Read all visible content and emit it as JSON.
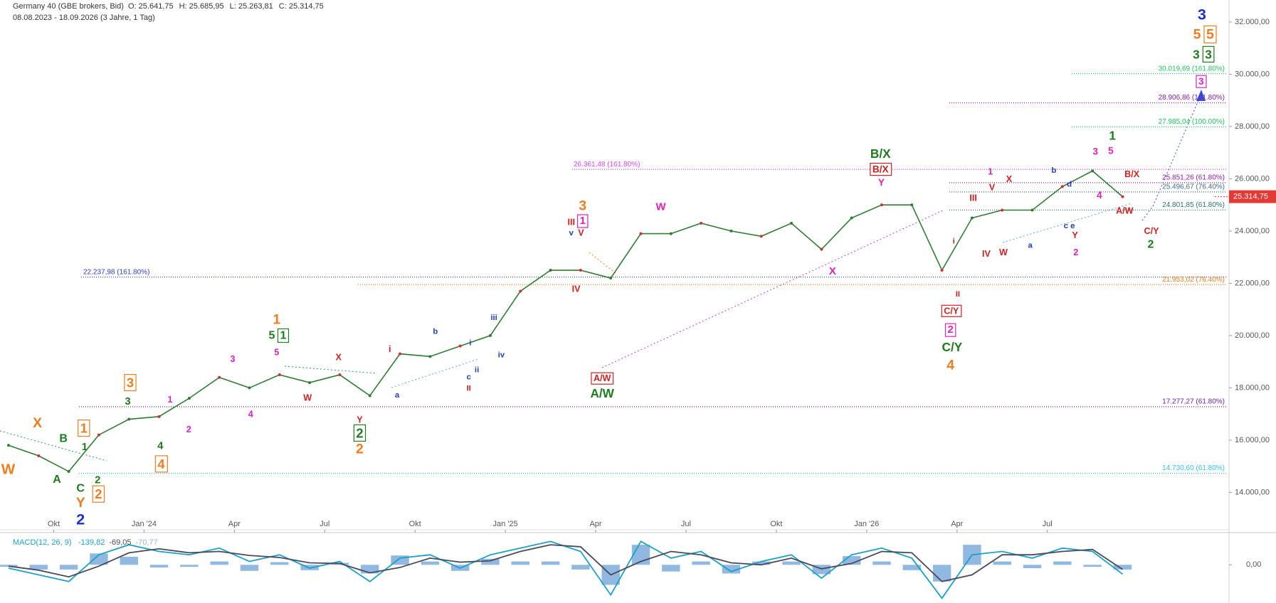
{
  "chart_data": [
    {
      "type": "line",
      "title": "Germany 40 (GBE brokers, Bid)",
      "ohlc": [
        "O: 25.641,75",
        "H: 25.685,95",
        "L: 25.263,81",
        "C: 25.314,75"
      ],
      "date_range": "08.08.2023 - 18.09.2026  (3 Jahre, 1 Tag)",
      "categories": [
        null,
        null,
        "Okt",
        null,
        null,
        "Jan '24",
        null,
        null,
        "Apr",
        null,
        null,
        "Jul",
        null,
        null,
        "Okt",
        null,
        null,
        "Jan '25",
        null,
        null,
        "Apr",
        null,
        null,
        "Jul",
        null,
        null,
        "Okt",
        null,
        null,
        "Jan '26",
        null,
        null,
        "Apr",
        null,
        null,
        "Jul",
        null,
        null
      ],
      "values": [
        15800,
        15400,
        14800,
        16200,
        16800,
        16900,
        17600,
        18400,
        18000,
        18500,
        18200,
        18500,
        17700,
        19300,
        19200,
        19600,
        20000,
        21700,
        22500,
        22500,
        22200,
        23900,
        23900,
        24300,
        24000,
        23800,
        24300,
        23300,
        24500,
        25000,
        25000,
        22500,
        24500,
        24800,
        24800,
        25700,
        26300,
        25314.75
      ],
      "color": "#2e7d32",
      "ylim": [
        12570,
        32840
      ],
      "yticks": [
        {
          "value": 14000,
          "label": "14.000,00"
        },
        {
          "value": 16000,
          "label": "16.000,00"
        },
        {
          "value": 18000,
          "label": "18.000,00"
        },
        {
          "value": 20000,
          "label": "20.000,00"
        },
        {
          "value": 22000,
          "label": "22.000,00"
        },
        {
          "value": 24000,
          "label": "24.000,00"
        },
        {
          "value": 26000,
          "label": "26.000,00"
        },
        {
          "value": 28000,
          "label": "28.000,00"
        },
        {
          "value": 30000,
          "label": "30.000,00"
        },
        {
          "value": 32000,
          "label": "32.000,00"
        }
      ],
      "last_price": {
        "value": 25314.75,
        "label": "25.314,75",
        "color": "#e53935"
      },
      "fib_levels": [
        {
          "value": 30019.69,
          "label": "30.019,69 (161.80%)",
          "color": "#22c55e"
        },
        {
          "value": 28906.86,
          "label": "28.906,86 (161.80%)",
          "color": "#8b1fa9"
        },
        {
          "value": 27985.04,
          "label": "27.985,04 (100.00%)",
          "color": "#22c55e"
        },
        {
          "value": 26361.48,
          "label": "26.361,48 (161.80%)",
          "color": "#d946ef"
        },
        {
          "value": 25851.26,
          "label": "25.851,26 (61.80%)",
          "color": "#8b1fa9"
        },
        {
          "value": 25496.67,
          "label": "25.496,67 (76.40%)",
          "color": "#3f6f7a"
        },
        {
          "value": 24801.85,
          "label": "24.801,85 (61.80%)",
          "color": "#2f6f6f"
        },
        {
          "value": 22237.98,
          "label": "22.237,98 (161.80%)",
          "color": "#2d3fbf"
        },
        {
          "value": 21953.02,
          "label": "21.953,02 (76.40%)",
          "color": "#f07d1f"
        },
        {
          "value": 17277.27,
          "label": "17.277,27 (61.80%)",
          "color": "#6b21a8"
        },
        {
          "value": 14730.6,
          "label": "14.730,60 (61.80%)",
          "color": "#38bdf8"
        }
      ],
      "annotations": [
        {
          "text": "W",
          "color": "#f07d1f"
        },
        {
          "text": "X",
          "color": "#f07d1f"
        },
        {
          "text": "Y",
          "color": "#f07d1f"
        },
        {
          "text": "2",
          "color": "#1f2fd0"
        },
        {
          "text": "A",
          "color": "#1e7b1e"
        },
        {
          "text": "B",
          "color": "#1e7b1e"
        },
        {
          "text": "C",
          "color": "#1e7b1e"
        },
        {
          "text": "1",
          "color": "#1e7b1e"
        },
        {
          "text": "2",
          "color": "#1e7b1e"
        },
        {
          "text": "1",
          "color": "#f07d1f",
          "boxed": true
        },
        {
          "text": "2",
          "color": "#f07d1f",
          "boxed": true
        },
        {
          "text": "3",
          "color": "#f07d1f",
          "boxed": true
        },
        {
          "text": "3",
          "color": "#1e7b1e"
        },
        {
          "text": "4",
          "color": "#1e7b1e"
        },
        {
          "text": "4",
          "color": "#f07d1f",
          "boxed": true
        },
        {
          "text": "1",
          "color": "#e020c0"
        },
        {
          "text": "2",
          "color": "#e020c0"
        },
        {
          "text": "3",
          "color": "#e020c0"
        },
        {
          "text": "4",
          "color": "#e020c0"
        },
        {
          "text": "1",
          "color": "#f07d1f"
        },
        {
          "text": "5",
          "color": "#1e7b1e"
        },
        {
          "text": "1",
          "color": "#1e7b1e",
          "boxed": true
        },
        {
          "text": "5",
          "color": "#e020c0"
        },
        {
          "text": "X",
          "color": "#d02020"
        },
        {
          "text": "W",
          "color": "#d02020"
        },
        {
          "text": "Y",
          "color": "#d02020"
        },
        {
          "text": "2",
          "color": "#1e7b1e",
          "boxed": true
        },
        {
          "text": "2",
          "color": "#f07d1f"
        },
        {
          "text": "i",
          "color": "#d02020"
        },
        {
          "text": "a",
          "color": "#2040c0"
        },
        {
          "text": "b",
          "color": "#2040c0"
        },
        {
          "text": "i",
          "color": "#2040c0"
        },
        {
          "text": "c",
          "color": "#2040c0"
        },
        {
          "text": "ii",
          "color": "#2040c0"
        },
        {
          "text": "II",
          "color": "#d02020"
        },
        {
          "text": "iii",
          "color": "#2040c0"
        },
        {
          "text": "iv",
          "color": "#2040c0"
        },
        {
          "text": "3",
          "color": "#f07d1f"
        },
        {
          "text": "III",
          "color": "#d02020"
        },
        {
          "text": "1",
          "color": "#e020c0",
          "boxed": true
        },
        {
          "text": "v",
          "color": "#2040c0"
        },
        {
          "text": "V",
          "color": "#d02020"
        },
        {
          "text": "IV",
          "color": "#d02020"
        },
        {
          "text": "A/W",
          "color": "#d02020",
          "boxed": true
        },
        {
          "text": "A/W",
          "color": "#1e7b1e"
        },
        {
          "text": "W",
          "color": "#e020c0"
        },
        {
          "text": "X",
          "color": "#e020c0"
        },
        {
          "text": "B/X",
          "color": "#1e7b1e"
        },
        {
          "text": "B/X",
          "color": "#d02020",
          "boxed": true
        },
        {
          "text": "Y",
          "color": "#e020c0"
        },
        {
          "text": "i",
          "color": "#d02020"
        },
        {
          "text": "II",
          "color": "#d02020"
        },
        {
          "text": "C/Y",
          "color": "#d02020",
          "boxed": true
        },
        {
          "text": "2",
          "color": "#e020c0",
          "boxed": true
        },
        {
          "text": "C/Y",
          "color": "#1e7b1e"
        },
        {
          "text": "4",
          "color": "#f07d1f"
        },
        {
          "text": "III",
          "color": "#d02020"
        },
        {
          "text": "1",
          "color": "#e020c0"
        },
        {
          "text": "X",
          "color": "#d02020"
        },
        {
          "text": "V",
          "color": "#d02020"
        },
        {
          "text": "IV",
          "color": "#d02020"
        },
        {
          "text": "W",
          "color": "#d02020"
        },
        {
          "text": "a",
          "color": "#2040c0"
        },
        {
          "text": "b",
          "color": "#2040c0"
        },
        {
          "text": "d",
          "color": "#2040c0"
        },
        {
          "text": "c e",
          "color": "#2040c0"
        },
        {
          "text": "Y",
          "color": "#d02020"
        },
        {
          "text": "2",
          "color": "#e020c0"
        },
        {
          "text": "1",
          "color": "#1e7b1e"
        },
        {
          "text": "3",
          "color": "#e020c0"
        },
        {
          "text": "5",
          "color": "#e020c0"
        },
        {
          "text": "4",
          "color": "#e020c0"
        },
        {
          "text": "B/X",
          "color": "#d02020"
        },
        {
          "text": "A/W",
          "color": "#d02020"
        },
        {
          "text": "C/Y",
          "color": "#d02020"
        },
        {
          "text": "2",
          "color": "#1e7b1e"
        },
        {
          "text": "3",
          "color": "#e020c0",
          "boxed": true
        },
        {
          "text": "3",
          "color": "#1e7b1e"
        },
        {
          "text": "3",
          "color": "#1e7b1e",
          "boxed": true
        },
        {
          "text": "5",
          "color": "#f07d1f"
        },
        {
          "text": "5",
          "color": "#f07d1f",
          "boxed": true
        },
        {
          "text": "3",
          "color": "#1f2fd0"
        }
      ]
    },
    {
      "type": "macd",
      "title": "MACD(12, 26, 9)",
      "ylim": [
        -550,
        450
      ],
      "yticks": [
        {
          "value": 0,
          "label": "0,00"
        }
      ],
      "series": [
        {
          "color": "#1ba1c9",
          "current": {
            "value": -139.82,
            "label": "-139,82"
          },
          "values": [
            -50,
            -150,
            -250,
            150,
            300,
            200,
            150,
            250,
            50,
            150,
            -50,
            50,
            -250,
            100,
            150,
            -50,
            150,
            250,
            350,
            200,
            -450,
            350,
            100,
            200,
            -100,
            50,
            150,
            -200,
            150,
            250,
            100,
            -500,
            150,
            200,
            100,
            250,
            200,
            -139.82
          ]
        },
        {
          "color": "#4a4a5a",
          "current": {
            "value": -69.05,
            "label": "-69,05"
          },
          "values": [
            -20,
            -80,
            -180,
            -20,
            180,
            240,
            180,
            200,
            140,
            110,
            30,
            20,
            -120,
            -40,
            100,
            40,
            60,
            200,
            300,
            270,
            -150,
            50,
            200,
            150,
            30,
            0,
            100,
            -60,
            20,
            200,
            180,
            -250,
            -150,
            150,
            150,
            200,
            230,
            -69.05
          ]
        },
        {
          "color": "#90b8e0",
          "current": {
            "value": -70.77,
            "label": "-70,77"
          },
          "values": [
            -30,
            -70,
            -70,
            170,
            120,
            -40,
            -30,
            50,
            -90,
            40,
            -80,
            30,
            -130,
            140,
            50,
            -90,
            90,
            50,
            50,
            -70,
            -300,
            300,
            -100,
            50,
            -130,
            50,
            50,
            -140,
            130,
            50,
            -80,
            -250,
            300,
            50,
            -50,
            50,
            -30,
            -70.77
          ]
        }
      ]
    }
  ]
}
